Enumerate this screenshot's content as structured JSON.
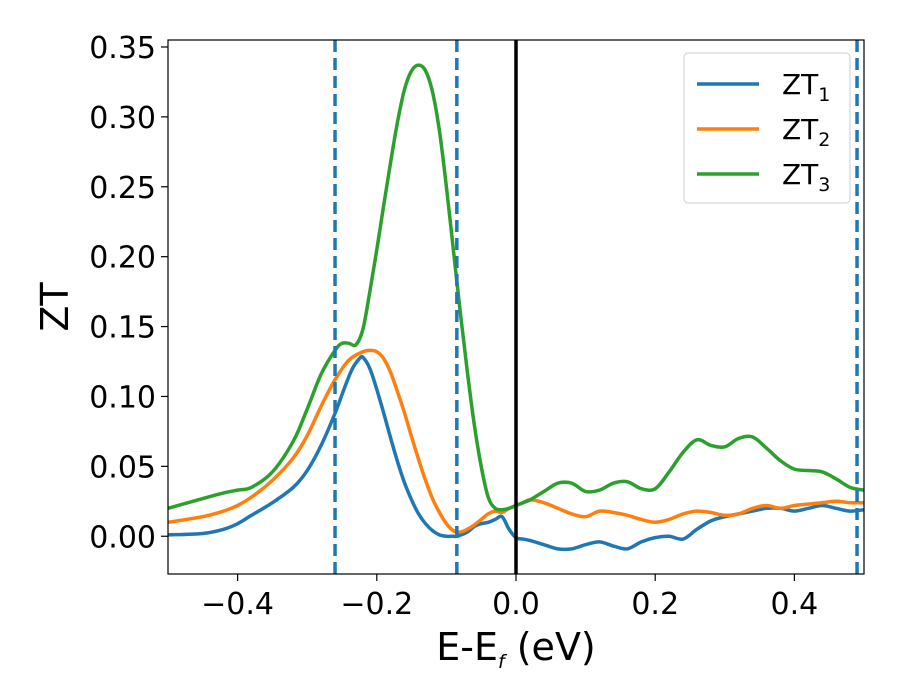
{
  "chart_data": {
    "type": "line",
    "title": "",
    "xlabel": {
      "main": "E-E",
      "sub": "f",
      "suffix": " (eV)"
    },
    "ylabel": "ZT",
    "xlim": [
      -0.5,
      0.5
    ],
    "ylim": [
      -0.027,
      0.355
    ],
    "xticks": [
      -0.4,
      -0.2,
      0.0,
      0.2,
      0.4
    ],
    "xtick_labels": [
      "−0.4",
      "−0.2",
      "0.0",
      "0.2",
      "0.4"
    ],
    "yticks": [
      0.0,
      0.05,
      0.1,
      0.15,
      0.2,
      0.25,
      0.3,
      0.35
    ],
    "ytick_labels": [
      "0.00",
      "0.05",
      "0.10",
      "0.15",
      "0.20",
      "0.25",
      "0.30",
      "0.35"
    ],
    "grid": false,
    "legend": "top-right",
    "vlines_dashed": {
      "x": [
        -0.26,
        -0.085,
        0.49
      ],
      "color": "#1f77b4"
    },
    "vline_solid": {
      "x": 0.0,
      "color": "#000000"
    },
    "series": [
      {
        "name": "ZT",
        "sub": "1",
        "color": "#1f77b4",
        "x": [
          -0.5,
          -0.45,
          -0.42,
          -0.4,
          -0.38,
          -0.35,
          -0.32,
          -0.3,
          -0.28,
          -0.26,
          -0.245,
          -0.235,
          -0.225,
          -0.22,
          -0.21,
          -0.2,
          -0.19,
          -0.18,
          -0.17,
          -0.16,
          -0.15,
          -0.14,
          -0.13,
          -0.12,
          -0.11,
          -0.1,
          -0.09,
          -0.085,
          -0.07,
          -0.06,
          -0.05,
          -0.04,
          -0.03,
          -0.02,
          -0.01,
          0.0,
          0.01,
          0.02,
          0.04,
          0.06,
          0.08,
          0.1,
          0.12,
          0.14,
          0.16,
          0.18,
          0.2,
          0.22,
          0.24,
          0.26,
          0.28,
          0.3,
          0.32,
          0.34,
          0.36,
          0.38,
          0.4,
          0.42,
          0.44,
          0.46,
          0.48,
          0.5
        ],
        "y": [
          0.001,
          0.002,
          0.005,
          0.009,
          0.015,
          0.024,
          0.035,
          0.047,
          0.065,
          0.088,
          0.108,
          0.12,
          0.127,
          0.128,
          0.12,
          0.105,
          0.088,
          0.07,
          0.053,
          0.038,
          0.026,
          0.016,
          0.009,
          0.004,
          0.001,
          0.0,
          0.0,
          0.0,
          0.003,
          0.007,
          0.009,
          0.01,
          0.012,
          0.014,
          0.005,
          -0.001,
          -0.002,
          -0.003,
          -0.006,
          -0.009,
          -0.009,
          -0.006,
          -0.004,
          -0.007,
          -0.009,
          -0.004,
          -0.001,
          0.0,
          -0.002,
          0.005,
          0.011,
          0.014,
          0.016,
          0.018,
          0.02,
          0.02,
          0.018,
          0.02,
          0.022,
          0.02,
          0.018,
          0.019
        ]
      },
      {
        "name": "ZT",
        "sub": "2",
        "color": "#ff7f0e",
        "x": [
          -0.5,
          -0.45,
          -0.42,
          -0.4,
          -0.38,
          -0.35,
          -0.32,
          -0.3,
          -0.28,
          -0.26,
          -0.24,
          -0.22,
          -0.21,
          -0.2,
          -0.19,
          -0.18,
          -0.17,
          -0.16,
          -0.15,
          -0.14,
          -0.13,
          -0.12,
          -0.11,
          -0.1,
          -0.09,
          -0.08,
          -0.07,
          -0.06,
          -0.05,
          -0.04,
          -0.03,
          -0.02,
          -0.01,
          0.0,
          0.01,
          0.02,
          0.04,
          0.06,
          0.08,
          0.1,
          0.12,
          0.14,
          0.16,
          0.18,
          0.2,
          0.22,
          0.24,
          0.26,
          0.28,
          0.3,
          0.32,
          0.34,
          0.36,
          0.38,
          0.4,
          0.42,
          0.44,
          0.46,
          0.48,
          0.5
        ],
        "y": [
          0.01,
          0.014,
          0.018,
          0.022,
          0.028,
          0.04,
          0.056,
          0.072,
          0.093,
          0.112,
          0.126,
          0.132,
          0.133,
          0.132,
          0.127,
          0.117,
          0.103,
          0.088,
          0.071,
          0.055,
          0.04,
          0.027,
          0.017,
          0.009,
          0.004,
          0.003,
          0.005,
          0.008,
          0.012,
          0.016,
          0.018,
          0.017,
          0.02,
          0.022,
          0.024,
          0.026,
          0.024,
          0.02,
          0.016,
          0.014,
          0.018,
          0.017,
          0.015,
          0.012,
          0.01,
          0.012,
          0.016,
          0.018,
          0.017,
          0.015,
          0.016,
          0.02,
          0.022,
          0.02,
          0.022,
          0.023,
          0.024,
          0.025,
          0.024,
          0.024
        ]
      },
      {
        "name": "ZT",
        "sub": "3",
        "color": "#2ca02c",
        "x": [
          -0.5,
          -0.45,
          -0.42,
          -0.4,
          -0.38,
          -0.35,
          -0.32,
          -0.3,
          -0.28,
          -0.26,
          -0.25,
          -0.24,
          -0.23,
          -0.22,
          -0.21,
          -0.2,
          -0.19,
          -0.18,
          -0.17,
          -0.16,
          -0.15,
          -0.14,
          -0.13,
          -0.12,
          -0.11,
          -0.1,
          -0.09,
          -0.08,
          -0.07,
          -0.06,
          -0.05,
          -0.04,
          -0.03,
          -0.02,
          -0.01,
          0.0,
          0.01,
          0.02,
          0.04,
          0.06,
          0.08,
          0.1,
          0.12,
          0.14,
          0.16,
          0.18,
          0.2,
          0.22,
          0.24,
          0.26,
          0.28,
          0.3,
          0.32,
          0.34,
          0.36,
          0.38,
          0.4,
          0.42,
          0.44,
          0.46,
          0.48,
          0.5
        ],
        "y": [
          0.02,
          0.027,
          0.031,
          0.033,
          0.035,
          0.046,
          0.068,
          0.091,
          0.116,
          0.133,
          0.138,
          0.138,
          0.137,
          0.148,
          0.175,
          0.205,
          0.237,
          0.268,
          0.297,
          0.32,
          0.333,
          0.337,
          0.333,
          0.318,
          0.29,
          0.25,
          0.205,
          0.16,
          0.118,
          0.08,
          0.05,
          0.028,
          0.02,
          0.019,
          0.02,
          0.022,
          0.024,
          0.026,
          0.032,
          0.038,
          0.038,
          0.032,
          0.033,
          0.038,
          0.039,
          0.034,
          0.034,
          0.046,
          0.06,
          0.069,
          0.065,
          0.064,
          0.07,
          0.071,
          0.063,
          0.054,
          0.048,
          0.047,
          0.046,
          0.041,
          0.035,
          0.033
        ]
      }
    ]
  }
}
